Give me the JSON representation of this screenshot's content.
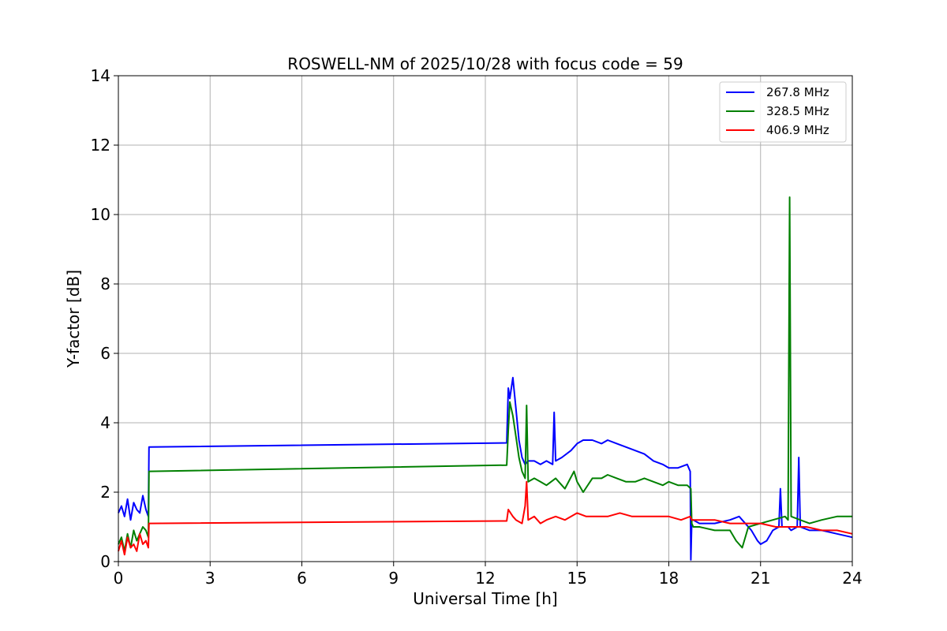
{
  "chart_data": {
    "type": "line",
    "title": "ROSWELL-NM of 2025/10/28 with focus code = 59",
    "xlabel": "Universal Time [h]",
    "ylabel": "Y-factor [dB]",
    "xlim": [
      0,
      24
    ],
    "ylim": [
      0,
      14
    ],
    "xticks": [
      0,
      3,
      6,
      9,
      12,
      15,
      18,
      21,
      24
    ],
    "yticks": [
      0,
      2,
      4,
      6,
      8,
      10,
      12,
      14
    ],
    "grid": true,
    "legend_position": "top-right",
    "series": [
      {
        "name": "267.8 MHz",
        "color": "#0000ff",
        "x": [
          0.0,
          0.1,
          0.2,
          0.3,
          0.4,
          0.5,
          0.6,
          0.7,
          0.8,
          0.9,
          0.98,
          1.0,
          12.7,
          12.75,
          12.8,
          12.9,
          13.0,
          13.1,
          13.2,
          13.3,
          13.4,
          13.6,
          13.8,
          14.0,
          14.2,
          14.25,
          14.3,
          14.5,
          14.8,
          15.0,
          15.2,
          15.5,
          15.8,
          16.0,
          16.3,
          16.6,
          16.9,
          17.2,
          17.5,
          17.8,
          18.0,
          18.3,
          18.6,
          18.7,
          18.72,
          18.75,
          18.8,
          19.0,
          19.5,
          20.0,
          20.3,
          20.5,
          20.7,
          20.9,
          21.0,
          21.2,
          21.4,
          21.6,
          21.65,
          21.7,
          21.9,
          22.0,
          22.2,
          22.25,
          22.3,
          22.6,
          23.0,
          23.5,
          24.0
        ],
        "y": [
          1.4,
          1.6,
          1.3,
          1.8,
          1.2,
          1.7,
          1.5,
          1.4,
          1.9,
          1.5,
          1.3,
          3.3,
          3.42,
          5.0,
          4.7,
          5.3,
          4.4,
          3.5,
          3.0,
          2.8,
          2.9,
          2.9,
          2.8,
          2.9,
          2.8,
          4.3,
          2.9,
          3.0,
          3.2,
          3.4,
          3.5,
          3.5,
          3.4,
          3.5,
          3.4,
          3.3,
          3.2,
          3.1,
          2.9,
          2.8,
          2.7,
          2.7,
          2.8,
          2.6,
          0.05,
          1.2,
          1.2,
          1.1,
          1.1,
          1.2,
          1.3,
          1.1,
          0.9,
          0.6,
          0.5,
          0.6,
          0.9,
          1.0,
          2.1,
          1.0,
          1.0,
          0.9,
          1.0,
          3.0,
          1.0,
          0.9,
          0.9,
          0.8,
          0.7
        ]
      },
      {
        "name": "328.5 MHz",
        "color": "#008000",
        "x": [
          0.0,
          0.1,
          0.2,
          0.3,
          0.4,
          0.5,
          0.6,
          0.7,
          0.8,
          0.9,
          0.98,
          1.0,
          12.7,
          12.75,
          12.8,
          12.9,
          13.0,
          13.1,
          13.2,
          13.3,
          13.35,
          13.4,
          13.6,
          13.8,
          14.0,
          14.3,
          14.6,
          14.9,
          15.0,
          15.2,
          15.5,
          15.8,
          16.0,
          16.3,
          16.6,
          16.9,
          17.2,
          17.5,
          17.8,
          18.0,
          18.3,
          18.6,
          18.72,
          18.75,
          18.8,
          19.0,
          19.5,
          20.0,
          20.2,
          20.4,
          20.6,
          21.0,
          21.4,
          21.8,
          21.9,
          21.95,
          22.0,
          22.3,
          22.6,
          23.0,
          23.5,
          24.0
        ],
        "y": [
          0.5,
          0.7,
          0.3,
          0.8,
          0.4,
          0.9,
          0.6,
          0.8,
          1.0,
          0.9,
          0.7,
          2.6,
          2.78,
          3.8,
          4.6,
          4.2,
          3.6,
          3.0,
          2.6,
          2.4,
          4.5,
          2.3,
          2.4,
          2.3,
          2.2,
          2.4,
          2.1,
          2.6,
          2.3,
          2.0,
          2.4,
          2.4,
          2.5,
          2.4,
          2.3,
          2.3,
          2.4,
          2.3,
          2.2,
          2.3,
          2.2,
          2.2,
          2.1,
          1.1,
          1.0,
          1.0,
          0.9,
          0.9,
          0.6,
          0.4,
          1.0,
          1.1,
          1.2,
          1.3,
          1.2,
          10.5,
          1.3,
          1.2,
          1.1,
          1.2,
          1.3,
          1.3
        ]
      },
      {
        "name": "406.9 MHz",
        "color": "#ff0000",
        "x": [
          0.0,
          0.1,
          0.2,
          0.3,
          0.4,
          0.5,
          0.6,
          0.7,
          0.8,
          0.9,
          0.98,
          1.0,
          12.7,
          12.75,
          12.9,
          13.0,
          13.2,
          13.3,
          13.35,
          13.4,
          13.6,
          13.8,
          14.0,
          14.3,
          14.6,
          15.0,
          15.3,
          15.6,
          16.0,
          16.4,
          16.8,
          17.2,
          17.6,
          18.0,
          18.4,
          18.7,
          18.75,
          19.0,
          19.5,
          20.0,
          20.5,
          21.0,
          21.5,
          22.0,
          22.5,
          23.0,
          23.5,
          24.0
        ],
        "y": [
          0.3,
          0.6,
          0.2,
          0.7,
          0.4,
          0.5,
          0.3,
          0.8,
          0.5,
          0.6,
          0.4,
          1.1,
          1.17,
          1.5,
          1.3,
          1.2,
          1.1,
          1.6,
          2.3,
          1.2,
          1.3,
          1.1,
          1.2,
          1.3,
          1.2,
          1.4,
          1.3,
          1.3,
          1.3,
          1.4,
          1.3,
          1.3,
          1.3,
          1.3,
          1.2,
          1.3,
          1.2,
          1.2,
          1.2,
          1.1,
          1.1,
          1.1,
          1.0,
          1.0,
          1.0,
          0.9,
          0.9,
          0.8
        ]
      }
    ]
  }
}
